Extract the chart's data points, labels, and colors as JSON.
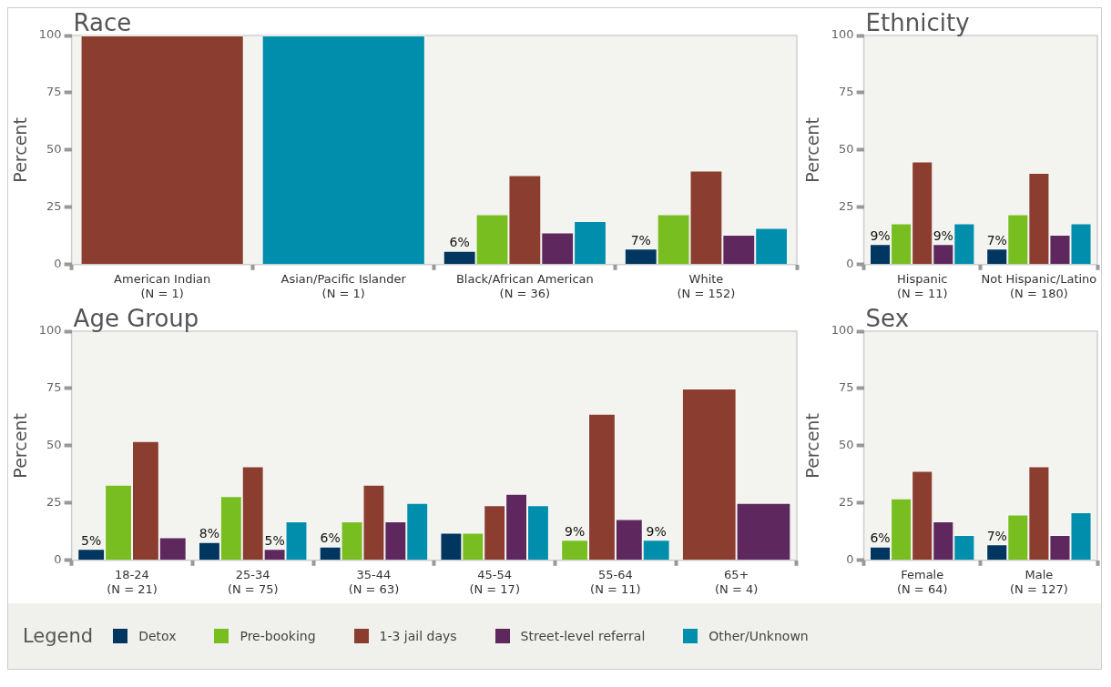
{
  "chart_data": [
    {
      "type": "bar",
      "title": "Race",
      "ylabel": "Percent",
      "categories": [
        "American Indian\n(N = 1)",
        "Asian/Pacific Islander\n(N = 1)",
        "Black/African American\n(N = 36)",
        "White\n(N = 152)"
      ],
      "ylim": [
        0,
        100
      ],
      "yticks": [
        0,
        25,
        50,
        75,
        100
      ],
      "grid": false,
      "legend": "bottom",
      "legend_title": "Legend",
      "series": [
        {
          "name": "Detox",
          "color": "#00365f",
          "values": [
            null,
            null,
            6,
            7
          ],
          "value_labels": [
            null,
            null,
            "6%",
            "7%"
          ]
        },
        {
          "name": "Pre-booking",
          "color": "#78be21",
          "values": [
            null,
            null,
            22,
            22
          ]
        },
        {
          "name": "1-3 jail days",
          "color": "#8b3e2f",
          "values": [
            100,
            null,
            39,
            41
          ]
        },
        {
          "name": "Street-level referral",
          "color": "#5e285e",
          "values": [
            null,
            null,
            14,
            13
          ]
        },
        {
          "name": "Other/Unknown",
          "color": "#008ead",
          "values": [
            null,
            100,
            19,
            16
          ]
        }
      ]
    },
    {
      "type": "bar",
      "title": "Ethnicity",
      "ylabel": "Percent",
      "categories": [
        "Hispanic\n(N = 11)",
        "Not Hispanic/Latino\n(N = 180)"
      ],
      "ylim": [
        0,
        100
      ],
      "yticks": [
        0,
        25,
        50,
        75,
        100
      ],
      "grid": false,
      "series": [
        {
          "color": "#00365f",
          "values": [
            9,
            7
          ],
          "value_labels": [
            "9%",
            "7%"
          ]
        },
        {
          "color": "#78be21",
          "values": [
            18,
            22
          ]
        },
        {
          "color": "#8b3e2f",
          "values": [
            45,
            40
          ]
        },
        {
          "color": "#5e285e",
          "values": [
            9,
            13
          ],
          "value_labels": [
            "9%",
            null
          ]
        },
        {
          "color": "#008ead",
          "values": [
            18,
            18
          ]
        }
      ]
    },
    {
      "type": "bar",
      "title": "Age Group",
      "ylabel": "Percent",
      "categories": [
        "18-24\n(N = 21)",
        "25-34\n(N = 75)",
        "35-44\n(N = 63)",
        "45-54\n(N = 17)",
        "55-64\n(N = 11)",
        "65+\n(N = 4)"
      ],
      "ylim": [
        0,
        100
      ],
      "yticks": [
        0,
        25,
        50,
        75,
        100
      ],
      "grid": false,
      "series": [
        {
          "color": "#00365f",
          "values": [
            5,
            8,
            6,
            12,
            null,
            null
          ],
          "value_labels": [
            "5%",
            "8%",
            "6%",
            null,
            null,
            null
          ]
        },
        {
          "color": "#78be21",
          "values": [
            33,
            28,
            17,
            12,
            9,
            null
          ],
          "value_labels": [
            null,
            null,
            null,
            null,
            "9%",
            null
          ]
        },
        {
          "color": "#8b3e2f",
          "values": [
            52,
            41,
            33,
            24,
            64,
            75
          ]
        },
        {
          "color": "#5e285e",
          "values": [
            10,
            5,
            17,
            29,
            18,
            25
          ],
          "value_labels": [
            null,
            "5%",
            null,
            null,
            null,
            null
          ]
        },
        {
          "color": "#008ead",
          "values": [
            null,
            17,
            25,
            24,
            9,
            null
          ],
          "value_labels": [
            null,
            null,
            null,
            null,
            "9%",
            null
          ]
        }
      ]
    },
    {
      "type": "bar",
      "title": "Sex",
      "ylabel": "Percent",
      "categories": [
        "Female\n(N = 64)",
        "Male\n(N = 127)"
      ],
      "ylim": [
        0,
        100
      ],
      "yticks": [
        0,
        25,
        50,
        75,
        100
      ],
      "grid": false,
      "series": [
        {
          "color": "#00365f",
          "values": [
            6,
            7
          ],
          "value_labels": [
            "6%",
            "7%"
          ]
        },
        {
          "color": "#78be21",
          "values": [
            27,
            20
          ]
        },
        {
          "color": "#8b3e2f",
          "values": [
            39,
            41
          ]
        },
        {
          "color": "#5e285e",
          "values": [
            17,
            11
          ]
        },
        {
          "color": "#008ead",
          "values": [
            11,
            21
          ]
        }
      ]
    }
  ]
}
